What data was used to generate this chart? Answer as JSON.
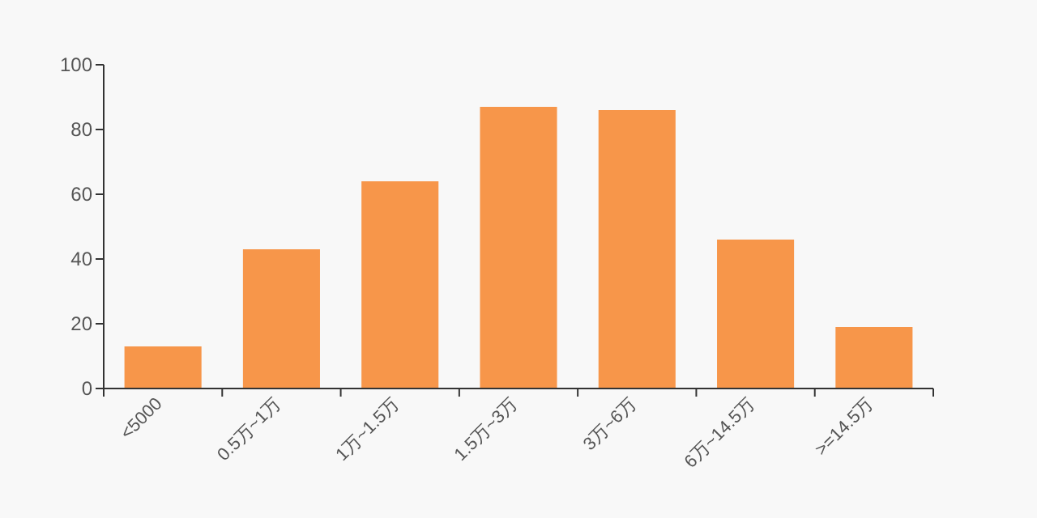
{
  "chart_data": {
    "type": "bar",
    "categories": [
      "<5000",
      "0.5万~1万",
      "1万~1.5万",
      "1.5万~3万",
      "3万~6万",
      "6万~14.5万",
      ">=14.5万"
    ],
    "values": [
      13,
      43,
      64,
      87,
      86,
      46,
      19
    ],
    "color": "#f7964a",
    "ylim": [
      0,
      100
    ],
    "yticks": [
      0,
      20,
      40,
      60,
      80,
      100
    ],
    "grid": false
  }
}
